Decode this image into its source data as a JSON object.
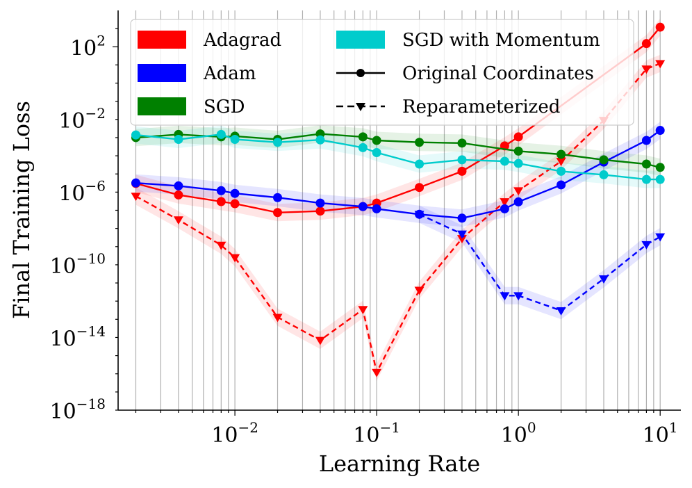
{
  "chart_data": {
    "type": "line",
    "xlabel": "Learning Rate",
    "ylabel": "Final Training Loss",
    "xscale": "log",
    "yscale": "log",
    "xlim": [
      0.0015,
      14
    ],
    "ylim": [
      1e-18,
      10000.0
    ],
    "grid": "vertical minor and major lines",
    "legend_placement": "top-left",
    "x_ticks": [
      {
        "value": 0.01,
        "base": "10",
        "exp": "−2"
      },
      {
        "value": 0.1,
        "base": "10",
        "exp": "−1"
      },
      {
        "value": 1,
        "base": "10",
        "exp": "0"
      },
      {
        "value": 10,
        "base": "10",
        "exp": "1"
      }
    ],
    "y_ticks": [
      {
        "value": 1e-18,
        "base": "10",
        "exp": "−18"
      },
      {
        "value": 1e-14,
        "base": "10",
        "exp": "−14"
      },
      {
        "value": 1e-10,
        "base": "10",
        "exp": "−10"
      },
      {
        "value": 1e-06,
        "base": "10",
        "exp": "−6"
      },
      {
        "value": 0.01,
        "base": "10",
        "exp": "−2"
      },
      {
        "value": 100.0,
        "base": "10",
        "exp": "2"
      }
    ],
    "x": [
      0.002,
      0.004,
      0.008,
      0.01,
      0.02,
      0.04,
      0.08,
      0.1,
      0.2,
      0.4,
      0.8,
      1,
      2,
      4,
      8,
      10
    ],
    "legend": {
      "optimizers": [
        {
          "name": "Adagrad",
          "color": "#ff0000"
        },
        {
          "name": "Adam",
          "color": "#0000ff"
        },
        {
          "name": "SGD",
          "color": "#008000"
        },
        {
          "name": "SGD with Momentum",
          "color": "#00cccc"
        }
      ],
      "styles": [
        {
          "name": "Original Coordinates",
          "line": "solid",
          "marker": "circle"
        },
        {
          "name": "Reparameterized",
          "line": "dashed",
          "marker": "triangle-down"
        }
      ]
    },
    "series": [
      {
        "optimizer": "Adagrad",
        "style": "Original Coordinates",
        "color": "#ff0000",
        "values": [
          3e-06,
          7e-07,
          3e-07,
          2.3e-07,
          7.5e-08,
          9e-08,
          1.6e-07,
          2.5e-07,
          1.8e-06,
          1.4e-05,
          0.00035,
          0.0011,
          null,
          null,
          150,
          1200
        ]
      },
      {
        "optimizer": "Adagrad",
        "style": "Reparameterized",
        "color": "#ff0000",
        "values": [
          6e-07,
          3e-08,
          1.2e-09,
          2.5e-10,
          1.3e-13,
          7e-15,
          3.5e-13,
          1.2e-16,
          4e-12,
          2.8e-09,
          3e-07,
          1.2e-06,
          5e-05,
          0.009,
          6,
          12
        ]
      },
      {
        "optimizer": "Adam",
        "style": "Original Coordinates",
        "color": "#0000ff",
        "values": [
          3.2e-06,
          2.2e-06,
          1.2e-06,
          8.5e-07,
          5e-07,
          2.5e-07,
          1.6e-07,
          1.2e-07,
          6e-08,
          3.7e-08,
          1.2e-07,
          2.9e-07,
          2.5e-06,
          4.5e-05,
          0.0007,
          0.0025
        ]
      },
      {
        "optimizer": "Adam",
        "style": "Reparameterized",
        "color": "#0000ff",
        "values": [
          null,
          null,
          null,
          null,
          null,
          null,
          null,
          null,
          6e-08,
          5e-09,
          2e-12,
          2e-12,
          3e-13,
          1.7e-11,
          1.3e-09,
          3.5e-09
        ]
      },
      {
        "optimizer": "SGD",
        "style": "Original Coordinates",
        "color": "#008000",
        "values": [
          0.001,
          0.0015,
          0.0011,
          0.0012,
          0.0008,
          0.0016,
          0.0011,
          0.0007,
          0.00055,
          0.0005,
          null,
          0.00018,
          0.00012,
          6e-05,
          3.5e-05,
          2.3e-05
        ]
      },
      {
        "optimizer": "SGD with Momentum",
        "style": "Original Coordinates",
        "color": "#00cccc",
        "values": [
          0.0014,
          0.0008,
          0.0015,
          0.0008,
          0.00055,
          0.00075,
          0.00028,
          0.00015,
          3.5e-05,
          6e-05,
          5e-05,
          3.8e-05,
          1.4e-05,
          9e-06,
          5e-06,
          5e-06
        ]
      }
    ]
  }
}
